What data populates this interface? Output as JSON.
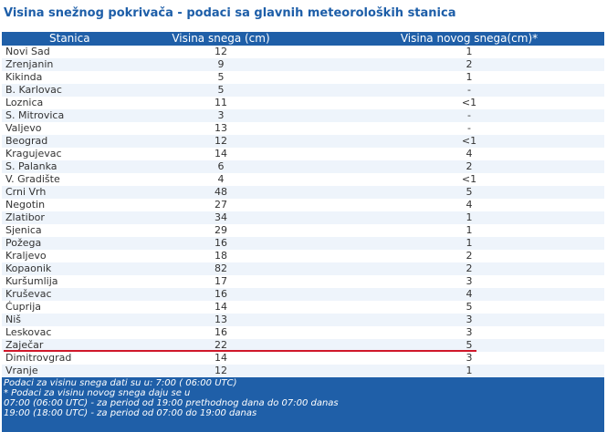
{
  "header": {
    "title": "Visina snežnog pokrivača - podaci sa glavnih meteoroloških stanica"
  },
  "table": {
    "columns": [
      "Stanica",
      "Visina snega (cm)",
      "Visina novog snega(cm)*"
    ],
    "rows": [
      [
        "Novi Sad",
        12,
        1
      ],
      [
        "Zrenjanin",
        9,
        2
      ],
      [
        "Kikinda",
        5,
        1
      ],
      [
        "B. Karlovac",
        5,
        "-"
      ],
      [
        "Loznica",
        11,
        "<1"
      ],
      [
        "S. Mitrovica",
        3,
        "-"
      ],
      [
        "Valjevo",
        13,
        "-"
      ],
      [
        "Beograd",
        12,
        "<1"
      ],
      [
        "Kragujevac",
        14,
        4
      ],
      [
        "S. Palanka",
        6,
        2
      ],
      [
        "V. Gradište",
        4,
        "<1"
      ],
      [
        "Crni Vrh",
        48,
        5
      ],
      [
        "Negotin",
        27,
        4
      ],
      [
        "Zlatibor",
        34,
        1
      ],
      [
        "Sjenica",
        29,
        1
      ],
      [
        "Požega",
        16,
        1
      ],
      [
        "Kraljevo",
        18,
        2
      ],
      [
        "Kopaonik",
        82,
        2
      ],
      [
        "Kuršumlija",
        17,
        3
      ],
      [
        "Kruševac",
        16,
        4
      ],
      [
        "Ćuprija",
        14,
        5
      ],
      [
        "Niš",
        13,
        3
      ],
      [
        "Leskovac",
        16,
        3
      ],
      [
        "Zaječar",
        22,
        5
      ],
      [
        "Dimitrovgrad",
        14,
        3
      ],
      [
        "Vranje",
        12,
        1
      ]
    ]
  },
  "footer": {
    "lines": [
      "Podaci za visinu snega dati su u:  7:00  ( 06:00 UTC)",
      "* Podaci za visinu novog snega daju se u",
      "07:00 (06:00 UTC) - za period od 19:00 prethodnog dana do 07:00 danas",
      "19:00 (18:00 UTC) - za period od 07:00 do 19:00 danas"
    ]
  }
}
